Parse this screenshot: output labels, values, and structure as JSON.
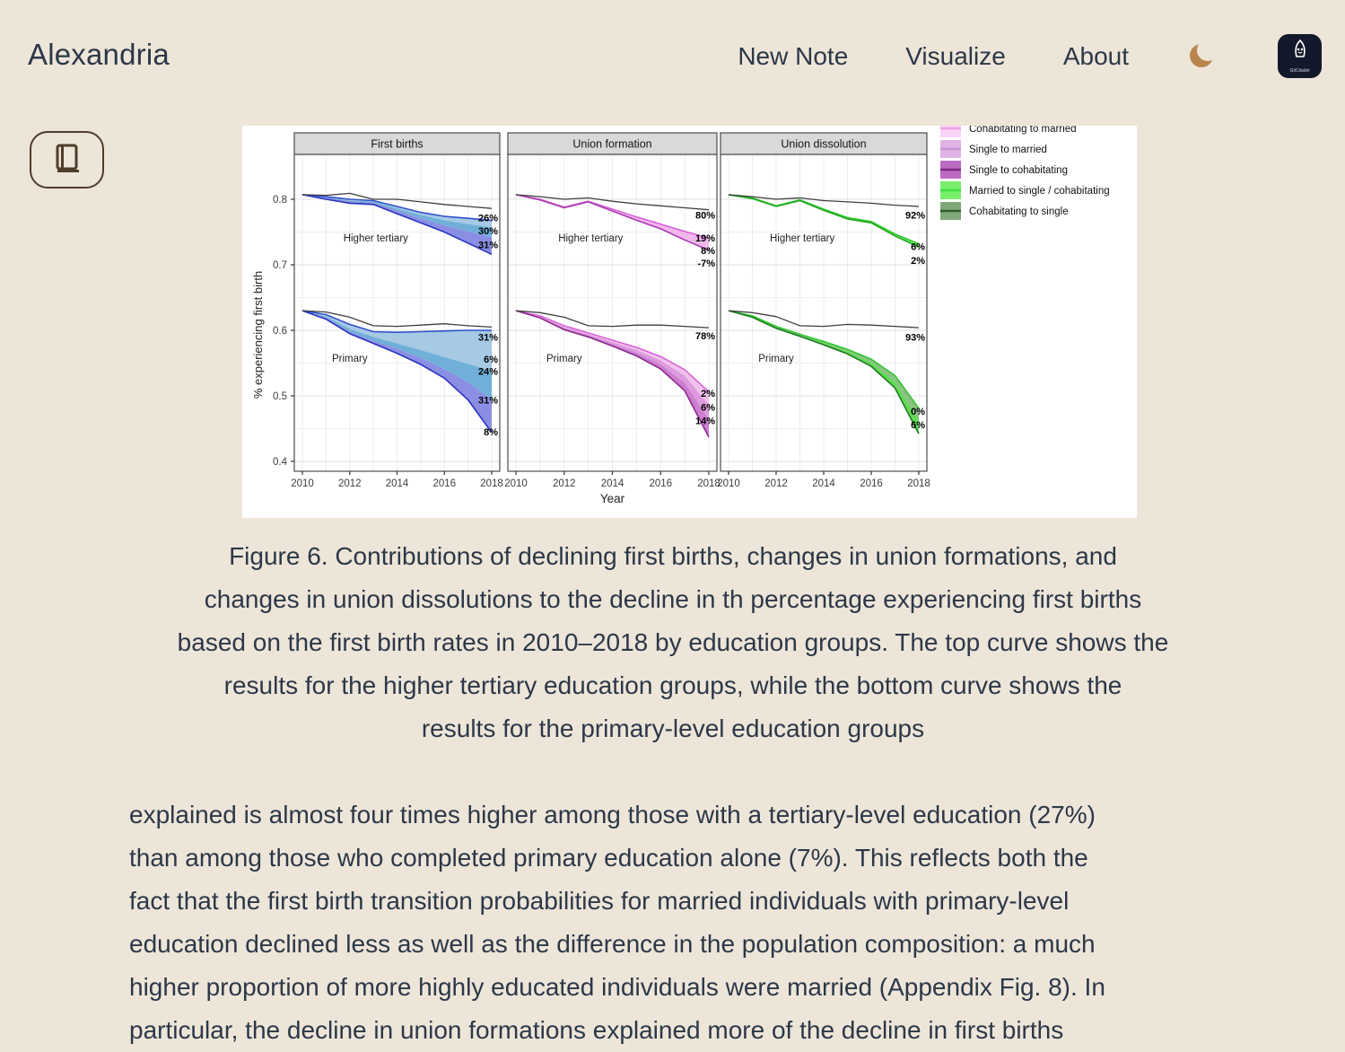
{
  "page": {
    "background": "#EDE5D8",
    "text_color": "#2C3848"
  },
  "header": {
    "brand": "Alexandria",
    "nav": [
      {
        "label": "New Note"
      },
      {
        "label": "Visualize"
      },
      {
        "label": "About"
      }
    ],
    "moon_icon_color": "#B9854C",
    "logo": {
      "text": "GitCitadel",
      "background": "#14182B"
    }
  },
  "figure": {
    "caption_lines": [
      "Figure 6. Contributions of declining first births, changes in union formations, and",
      "changes in union dissolutions to the decline in th percentage experiencing first births",
      "based on the first birth rates in 2010–2018 by education groups. The top curve shows the",
      "results for the higher tertiary education groups, while the bottom curve shows the",
      "results for the primary-level education groups"
    ]
  },
  "article": {
    "paragraph_lines": [
      "explained is almost four times higher among those with a tertiary-level education (27%)",
      "than among those who completed primary education alone (7%). This reflects both the",
      "fact that the first birth transition probabilities for married individuals with primary-level",
      "education declined less as well as the difference in the population composition: a much",
      "higher proportion of more highly educated individuals were married (Appendix Fig. 8). In",
      "particular, the decline in union formations explained more of the decline in first births"
    ]
  },
  "chart_data": {
    "type": "area",
    "x": [
      2010,
      2011,
      2012,
      2013,
      2014,
      2015,
      2016,
      2017,
      2018
    ],
    "x_ticks": [
      2010,
      2012,
      2014,
      2016,
      2018
    ],
    "xlabel": "Year",
    "ylabel": "% experiencing first birth",
    "y_ticks": [
      0.8,
      0.7,
      0.6,
      0.5,
      0.4
    ],
    "ylim": [
      0.385,
      0.868
    ],
    "grid": true,
    "legend_position": "top-right-clipped",
    "panels": [
      {
        "title": "First births",
        "groups": [
          {
            "label": "Higher tertiary",
            "label_x": 2013.1,
            "label_v": 0.741,
            "ref": [
              0.807,
              0.806,
              0.809,
              0.8,
              0.8,
              0.796,
              0.792,
              0.789,
              0.786
            ],
            "bounds": [
              [
                0.807,
                0.804,
                0.8,
                0.798,
                0.789,
                0.78,
                0.774,
                0.771,
                0.768
              ],
              [
                0.807,
                0.803,
                0.798,
                0.797,
                0.786,
                0.776,
                0.768,
                0.762,
                0.757
              ],
              [
                0.807,
                0.802,
                0.797,
                0.795,
                0.783,
                0.771,
                0.76,
                0.751,
                0.742
              ],
              [
                0.807,
                0.8,
                0.794,
                0.792,
                0.778,
                0.764,
                0.75,
                0.733,
                0.716
              ]
            ],
            "band_colors": [
              "#a6c9e4",
              "#70b0d8",
              "#8b8fe4"
            ],
            "edge_strokes": [
              "#3050cc",
              "#2a35c0"
            ],
            "end_labels": [
              {
                "text": "26%",
                "v": 0.772
              },
              {
                "text": "30%",
                "v": 0.752
              },
              {
                "text": "31%",
                "v": 0.731
              }
            ]
          },
          {
            "label": "Primary",
            "label_x": 2012,
            "label_v": 0.5575,
            "ref": [
              0.63,
              0.628,
              0.62,
              0.607,
              0.606,
              0.608,
              0.61,
              0.607,
              0.605
            ],
            "bounds": [
              [
                0.63,
                0.624,
                0.609,
                0.598,
                0.597,
                0.598,
                0.599,
                0.6,
                0.6
              ],
              [
                0.63,
                0.621,
                0.602,
                0.59,
                0.58,
                0.57,
                0.559,
                0.549,
                0.538
              ],
              [
                0.63,
                0.619,
                0.598,
                0.584,
                0.572,
                0.558,
                0.541,
                0.521,
                0.494
              ],
              [
                0.63,
                0.617,
                0.595,
                0.58,
                0.565,
                0.548,
                0.527,
                0.494,
                0.444
              ]
            ],
            "band_colors": [
              "#a6c9e4",
              "#70b0d8",
              "#8b8fe4"
            ],
            "edge_strokes": [
              "#3050cc",
              "#2a35c0"
            ],
            "end_labels": [
              {
                "text": "31%",
                "v": 0.59
              },
              {
                "text": "6%",
                "v": 0.556
              },
              {
                "text": "24%",
                "v": 0.538
              },
              {
                "text": "31%",
                "v": 0.494
              },
              {
                "text": "8%",
                "v": 0.445
              }
            ]
          }
        ]
      },
      {
        "title": "Union formation",
        "groups": [
          {
            "label": "Higher tertiary",
            "label_x": 2013.1,
            "label_v": 0.741,
            "ref": [
              0.807,
              0.804,
              0.8,
              0.802,
              0.797,
              0.793,
              0.79,
              0.787,
              0.784
            ],
            "bounds": [
              [
                0.807,
                0.8,
                0.788,
                0.797,
                0.785,
                0.773,
                0.762,
                0.751,
                0.741
              ],
              [
                0.807,
                0.799,
                0.787,
                0.796,
                0.782,
                0.768,
                0.755,
                0.738,
                0.722
              ]
            ],
            "band_colors": [
              "#f2b8ee"
            ],
            "edge_strokes": [
              "#d863d8",
              "#a93ab1"
            ],
            "end_labels": [
              {
                "text": "80%",
                "v": 0.776
              },
              {
                "text": "19%",
                "v": 0.741
              },
              {
                "text": "8%",
                "v": 0.722
              },
              {
                "text": "-7%",
                "v": 0.703
              }
            ]
          },
          {
            "label": "Primary",
            "label_x": 2012,
            "label_v": 0.5575,
            "ref": [
              0.63,
              0.627,
              0.62,
              0.607,
              0.606,
              0.608,
              0.608,
              0.606,
              0.604
            ],
            "bounds": [
              [
                0.63,
                0.622,
                0.607,
                0.596,
                0.585,
                0.574,
                0.56,
                0.54,
                0.506
              ],
              [
                0.63,
                0.621,
                0.605,
                0.594,
                0.582,
                0.57,
                0.554,
                0.531,
                0.486
              ],
              [
                0.63,
                0.62,
                0.603,
                0.592,
                0.579,
                0.566,
                0.548,
                0.52,
                0.464
              ],
              [
                0.63,
                0.619,
                0.601,
                0.59,
                0.576,
                0.561,
                0.541,
                0.508,
                0.437
              ]
            ],
            "band_colors": [
              "#f0c2ec",
              "#de9ade",
              "#cc7fd0"
            ],
            "edge_strokes": [
              "#d863d8",
              "#8c2a8c"
            ],
            "end_labels": [
              {
                "text": "78%",
                "v": 0.592
              },
              {
                "text": "2%",
                "v": 0.504
              },
              {
                "text": "6%",
                "v": 0.483
              },
              {
                "text": "14%",
                "v": 0.462
              }
            ]
          }
        ]
      },
      {
        "title": "Union dissolution",
        "groups": [
          {
            "label": "Higher tertiary",
            "label_x": 2013.1,
            "label_v": 0.741,
            "ref": [
              0.807,
              0.804,
              0.8,
              0.802,
              0.798,
              0.796,
              0.794,
              0.791,
              0.789
            ],
            "bounds": [
              [
                0.807,
                0.802,
                0.79,
                0.799,
                0.785,
                0.772,
                0.766,
                0.747,
                0.732
              ],
              [
                0.807,
                0.801,
                0.789,
                0.798,
                0.783,
                0.77,
                0.764,
                0.744,
                0.727
              ]
            ],
            "band_colors": [
              "#7de86e"
            ],
            "edge_strokes": [
              "#2fca2f",
              "#27a827"
            ],
            "end_labels": [
              {
                "text": "92%",
                "v": 0.776
              },
              {
                "text": "6%",
                "v": 0.728
              },
              {
                "text": "2%",
                "v": 0.707
              }
            ]
          },
          {
            "label": "Primary",
            "label_x": 2012,
            "label_v": 0.5575,
            "ref": [
              0.63,
              0.627,
              0.621,
              0.607,
              0.606,
              0.609,
              0.608,
              0.606,
              0.604
            ],
            "bounds": [
              [
                0.63,
                0.622,
                0.606,
                0.594,
                0.583,
                0.571,
                0.556,
                0.531,
                0.481
              ],
              [
                0.63,
                0.621,
                0.604,
                0.592,
                0.581,
                0.568,
                0.551,
                0.522,
                0.462
              ],
              [
                0.63,
                0.62,
                0.603,
                0.591,
                0.578,
                0.564,
                0.545,
                0.512,
                0.442
              ]
            ],
            "band_colors": [
              "#8fbe87",
              "#62da58"
            ],
            "edge_strokes": [
              "#2fca2f",
              "#1d7a1d"
            ],
            "end_labels": [
              {
                "text": "93%",
                "v": 0.59
              },
              {
                "text": "0%",
                "v": 0.477
              },
              {
                "text": "6%",
                "v": 0.456
              }
            ]
          }
        ]
      }
    ],
    "legend": {
      "entries": [
        {
          "label": "Cohabitating to married",
          "fill": "#f9d2f7",
          "line": "#eda4e4",
          "clipped": true
        },
        {
          "label": "Single to married",
          "fill": "#dfb3e6",
          "line": "#cb90d4",
          "clipped": false
        },
        {
          "label": "Single to cohabitating",
          "fill": "#bb6ac1",
          "line": "#7c2b81",
          "clipped": false
        },
        {
          "label": "Married to single / cohabitating",
          "fill": "#79ee6b",
          "line": "#3fdf3f",
          "clipped": false
        },
        {
          "label": "Cohabitating to single",
          "fill": "#80a87a",
          "line": "#2b5e2b",
          "clipped": false
        }
      ]
    }
  }
}
